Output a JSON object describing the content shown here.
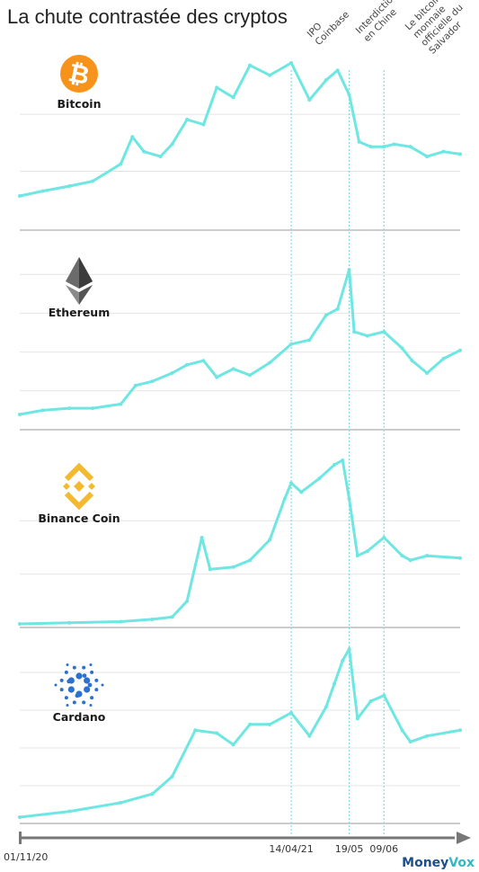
{
  "title": "La chute contrastée des cryptos",
  "colors": {
    "line": "#6ee6e2",
    "grid": "#e4e4e4",
    "axis": "#777777",
    "event": "#7fe0e4",
    "bitcoin": "#f7931a",
    "ethereum": "#3c3c3d",
    "binance": "#f3ba2f",
    "cardano": "#2a71d0"
  },
  "chart_data": [
    {
      "type": "line",
      "name": "Bitcoin",
      "icon": "bitcoin-icon",
      "x": [
        "2020-11-01",
        "2020-11-15",
        "2020-12-01",
        "2020-12-15",
        "2021-01-01",
        "2021-01-08",
        "2021-01-15",
        "2021-01-25",
        "2021-02-01",
        "2021-02-10",
        "2021-02-20",
        "2021-02-28",
        "2021-03-10",
        "2021-03-20",
        "2021-04-01",
        "2021-04-14",
        "2021-04-25",
        "2021-05-05",
        "2021-05-12",
        "2021-05-19",
        "2021-05-25",
        "2021-06-01",
        "2021-06-09",
        "2021-06-15",
        "2021-06-25",
        "2021-07-05",
        "2021-07-15",
        "2021-07-25"
      ],
      "values": [
        0,
        2,
        4,
        6,
        13,
        24,
        18,
        16,
        21,
        31,
        29,
        44,
        40,
        53,
        49,
        54,
        39,
        47,
        51,
        41,
        22,
        20,
        20,
        21,
        20,
        16,
        18,
        17
      ]
    },
    {
      "type": "line",
      "name": "Ethereum",
      "icon": "ethereum-icon",
      "x": [
        "2020-11-01",
        "2020-11-15",
        "2020-12-01",
        "2020-12-15",
        "2021-01-01",
        "2021-01-10",
        "2021-01-20",
        "2021-02-01",
        "2021-02-10",
        "2021-02-20",
        "2021-02-28",
        "2021-03-10",
        "2021-03-20",
        "2021-04-01",
        "2021-04-14",
        "2021-04-25",
        "2021-05-05",
        "2021-05-12",
        "2021-05-19",
        "2021-05-22",
        "2021-05-30",
        "2021-06-09",
        "2021-06-20",
        "2021-06-26",
        "2021-07-05",
        "2021-07-15",
        "2021-07-25"
      ],
      "values": [
        0,
        2,
        3,
        3,
        5,
        14,
        16,
        20,
        24,
        26,
        18,
        22,
        19,
        25,
        34,
        36,
        48,
        51,
        70,
        40,
        38,
        40,
        32,
        26,
        20,
        27,
        31
      ]
    },
    {
      "type": "line",
      "name": "Binance Coin",
      "icon": "binance-icon",
      "x": [
        "2020-11-01",
        "2020-12-01",
        "2021-01-01",
        "2021-01-20",
        "2021-02-01",
        "2021-02-10",
        "2021-02-19",
        "2021-02-24",
        "2021-03-10",
        "2021-03-20",
        "2021-04-01",
        "2021-04-10",
        "2021-04-14",
        "2021-04-20",
        "2021-05-01",
        "2021-05-10",
        "2021-05-15",
        "2021-05-19",
        "2021-05-24",
        "2021-05-30",
        "2021-06-09",
        "2021-06-20",
        "2021-06-25",
        "2021-07-05",
        "2021-07-25"
      ],
      "values": [
        0,
        0.5,
        1,
        2,
        3,
        10,
        38,
        24,
        25,
        28,
        37,
        55,
        62,
        58,
        64,
        70,
        72,
        55,
        30,
        32,
        38,
        30,
        28,
        30,
        29
      ]
    },
    {
      "type": "line",
      "name": "Cardano",
      "icon": "cardano-icon",
      "x": [
        "2020-11-01",
        "2020-12-01",
        "2021-01-01",
        "2021-01-20",
        "2021-02-01",
        "2021-02-15",
        "2021-02-28",
        "2021-03-10",
        "2021-03-20",
        "2021-04-01",
        "2021-04-14",
        "2021-04-25",
        "2021-05-05",
        "2021-05-10",
        "2021-05-15",
        "2021-05-19",
        "2021-05-24",
        "2021-06-01",
        "2021-06-09",
        "2021-06-20",
        "2021-06-25",
        "2021-07-05",
        "2021-07-25"
      ],
      "values": [
        0,
        2,
        5,
        8,
        14,
        30,
        29,
        25,
        32,
        32,
        36,
        28,
        38,
        46,
        54,
        58,
        34,
        40,
        42,
        30,
        26,
        28,
        30
      ]
    }
  ],
  "events": [
    {
      "date": "2021-04-14",
      "label_lines": [
        "IPO",
        "Coinbase"
      ],
      "axis_label": "14/04/21"
    },
    {
      "date": "2021-05-19",
      "label_lines": [
        "Interdiction",
        "en Chine"
      ],
      "axis_label": "19/05"
    },
    {
      "date": "2021-06-09",
      "label_lines": [
        "Le bitcoin",
        "monnaie",
        "officielle du",
        "Salvador"
      ],
      "axis_label": "09/06"
    }
  ],
  "axis": {
    "start_label": "01/11/20"
  },
  "brand": {
    "part1": "Money",
    "part2": "Vox"
  }
}
